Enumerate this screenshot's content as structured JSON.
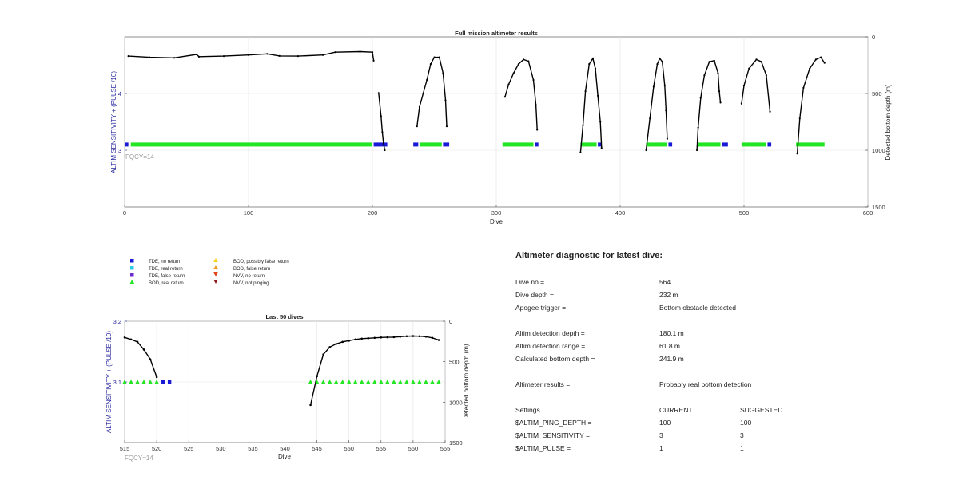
{
  "colors": {
    "bod_real": "#22e622",
    "tde_no_return": "#1a1ad6",
    "tde_real_return": "#2ec8ec",
    "tde_false_return": "#6a2ad0",
    "bod_possibly_false": "#f2d21e",
    "bod_false": "#f29a1e",
    "nvv_no_return": "#e0461a",
    "nvv_not_pinging": "#8a1a1a",
    "depth_line": "#000000",
    "left_axis": "#2a2aa0",
    "fqcy_text": "#9a9a9a"
  },
  "chart_data": [
    {
      "type": "scatter",
      "name": "full-mission",
      "title": "Full mission altimeter results",
      "xlabel": "Dive",
      "ylabel_left": "ALTIM SENSITIVITY + (PULSE /10)",
      "ylabel_right": "Detected bottom depth (m)",
      "xlim": [
        0,
        600
      ],
      "ylim_left": [
        2,
        5
      ],
      "ylim_right": [
        1500,
        0
      ],
      "xticks": [
        0,
        100,
        200,
        300,
        400,
        500,
        600
      ],
      "yticks_left": [
        3,
        4
      ],
      "yticks_right": [
        0,
        500,
        1000,
        1500
      ],
      "annotation": "FQCY=14",
      "grid": true,
      "bod_real_segments": [
        [
          5,
          200
        ],
        [
          238,
          256
        ],
        [
          305,
          330
        ],
        [
          368,
          381
        ],
        [
          421,
          438
        ],
        [
          462,
          481
        ],
        [
          498,
          518
        ],
        [
          542,
          565
        ]
      ],
      "tde_no_return_segments": [
        [
          0,
          3
        ],
        [
          201,
          212
        ],
        [
          233,
          237
        ],
        [
          257,
          262
        ],
        [
          331,
          334
        ],
        [
          382,
          385
        ],
        [
          439,
          442
        ],
        [
          482,
          487
        ],
        [
          519,
          522
        ]
      ],
      "detected_depth": [
        [
          [
            3,
            170
          ],
          [
            20,
            180
          ],
          [
            40,
            185
          ],
          [
            58,
            155
          ],
          [
            60,
            175
          ],
          [
            80,
            170
          ],
          [
            100,
            160
          ],
          [
            115,
            150
          ],
          [
            125,
            168
          ],
          [
            140,
            170
          ],
          [
            160,
            160
          ],
          [
            170,
            135
          ],
          [
            190,
            130
          ],
          [
            200,
            135
          ],
          [
            201,
            210
          ]
        ],
        [
          [
            205,
            495
          ],
          [
            207,
            700
          ],
          [
            208,
            840
          ],
          [
            209,
            940
          ],
          [
            210,
            1000
          ]
        ],
        [
          [
            236,
            790
          ],
          [
            238,
            620
          ],
          [
            241,
            500
          ],
          [
            244,
            380
          ],
          [
            247,
            240
          ],
          [
            250,
            180
          ],
          [
            254,
            180
          ],
          [
            257,
            320
          ],
          [
            259,
            560
          ],
          [
            260,
            790
          ]
        ],
        [
          [
            307,
            530
          ],
          [
            310,
            420
          ],
          [
            314,
            320
          ],
          [
            318,
            240
          ],
          [
            322,
            200
          ],
          [
            326,
            215
          ],
          [
            330,
            380
          ],
          [
            332,
            600
          ],
          [
            333,
            820
          ]
        ],
        [
          [
            368,
            1020
          ],
          [
            370,
            780
          ],
          [
            372,
            480
          ],
          [
            375,
            240
          ],
          [
            378,
            190
          ],
          [
            380,
            280
          ],
          [
            382,
            520
          ],
          [
            384,
            750
          ],
          [
            385,
            980
          ]
        ],
        [
          [
            421,
            1000
          ],
          [
            424,
            720
          ],
          [
            427,
            440
          ],
          [
            430,
            240
          ],
          [
            432,
            190
          ],
          [
            434,
            220
          ],
          [
            436,
            430
          ],
          [
            437,
            650
          ],
          [
            438,
            900
          ]
        ],
        [
          [
            462,
            1000
          ],
          [
            463,
            800
          ],
          [
            465,
            540
          ],
          [
            468,
            340
          ],
          [
            472,
            220
          ],
          [
            476,
            210
          ],
          [
            479,
            320
          ],
          [
            480,
            480
          ],
          [
            481,
            580
          ]
        ],
        [
          [
            498,
            590
          ],
          [
            500,
            430
          ],
          [
            504,
            280
          ],
          [
            510,
            200
          ],
          [
            514,
            220
          ],
          [
            518,
            340
          ],
          [
            521,
            660
          ]
        ],
        [
          [
            543,
            1030
          ],
          [
            545,
            720
          ],
          [
            548,
            450
          ],
          [
            553,
            280
          ],
          [
            558,
            200
          ],
          [
            562,
            180
          ],
          [
            565,
            230
          ]
        ]
      ]
    },
    {
      "type": "scatter",
      "name": "last-50-dives",
      "title": "Last 50 dives",
      "xlabel": "Dive",
      "ylabel_left": "ALTIM SENSITIVITY + (PULSE /10)",
      "ylabel_right": "Detected bottom depth (m)",
      "xlim": [
        515,
        565
      ],
      "ylim_left": [
        3,
        3.2
      ],
      "ylim_right": [
        1500,
        0
      ],
      "xticks": [
        515,
        520,
        525,
        530,
        535,
        540,
        545,
        550,
        555,
        560,
        565
      ],
      "yticks_left": [
        3.1,
        3.2
      ],
      "yticks_right": [
        0,
        500,
        1000,
        1500
      ],
      "annotation": "FQCY=14",
      "grid": true,
      "bod_real_dives": [
        515,
        516,
        517,
        518,
        519,
        520,
        544,
        545,
        546,
        547,
        548,
        549,
        550,
        551,
        552,
        553,
        554,
        555,
        556,
        557,
        558,
        559,
        560,
        561,
        562,
        563,
        564
      ],
      "tde_no_return_dives": [
        521,
        522
      ],
      "detected_depth": [
        [
          [
            515,
            200
          ],
          [
            516,
            225
          ],
          [
            517,
            255
          ],
          [
            518,
            350
          ],
          [
            519,
            470
          ],
          [
            520,
            690
          ]
        ],
        [
          [
            544,
            1035
          ],
          [
            545,
            680
          ],
          [
            546,
            410
          ],
          [
            547,
            320
          ],
          [
            548,
            280
          ],
          [
            549,
            255
          ],
          [
            550,
            240
          ],
          [
            551,
            225
          ],
          [
            552,
            215
          ],
          [
            553,
            210
          ],
          [
            554,
            205
          ],
          [
            555,
            200
          ],
          [
            556,
            198
          ],
          [
            557,
            196
          ],
          [
            558,
            190
          ],
          [
            559,
            185
          ],
          [
            560,
            183
          ],
          [
            561,
            185
          ],
          [
            562,
            190
          ],
          [
            563,
            205
          ],
          [
            564,
            232
          ]
        ]
      ]
    }
  ],
  "legend": {
    "col1": [
      "TDE, no return",
      "TDE, real return",
      "TDE, false return",
      "BOD, real return"
    ],
    "col2": [
      "BOD, possibly false return",
      "BOD, false return",
      "NVV, no return",
      "NVV, not pinging"
    ]
  },
  "diagnostic": {
    "title": "Altimeter diagnostic for latest dive:",
    "dive_no_label": "Dive no =",
    "dive_no": "564",
    "dive_depth_label": "Dive depth =",
    "dive_depth": "232 m",
    "apogee_label": "Apogee trigger =",
    "apogee": "Bottom obstacle detected",
    "det_depth_label": "Altim detection depth =",
    "det_depth": "180.1 m",
    "det_range_label": "Altim detection range =",
    "det_range": "61.8 m",
    "calc_depth_label": "Calculated bottom depth =",
    "calc_depth": "241.9 m",
    "results_label": "Altimeter results =",
    "results": "Probably real bottom detection",
    "settings_label": "Settings",
    "current_label": "CURRENT",
    "suggested_label": "SUGGESTED",
    "ping_label": "$ALTIM_PING_DEPTH =",
    "ping_current": "100",
    "ping_suggested": "100",
    "sens_label": "$ALTIM_SENSITIVITY =",
    "sens_current": "3",
    "sens_suggested": "3",
    "pulse_label": "$ALTIM_PULSE =",
    "pulse_current": "1",
    "pulse_suggested": "1"
  }
}
